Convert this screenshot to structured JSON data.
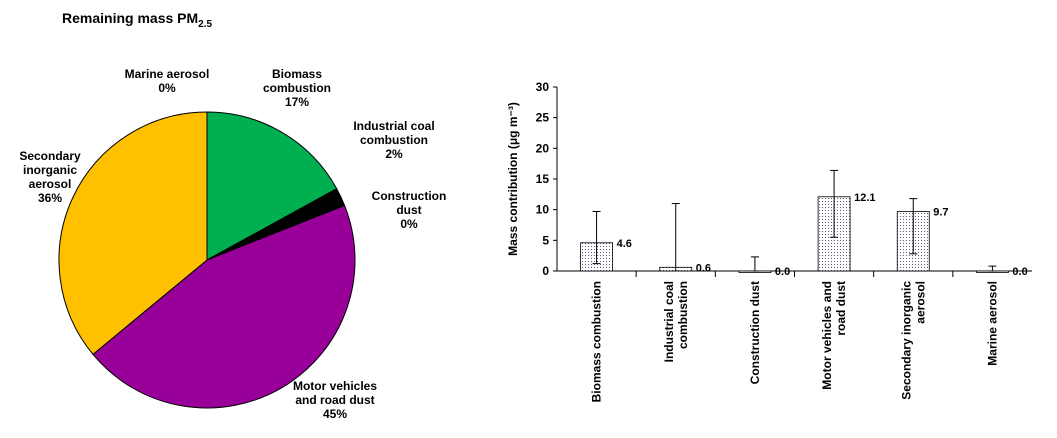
{
  "title": {
    "main": "Remaining mass PM",
    "subscript": "2.5"
  },
  "chart_data": [
    {
      "type": "pie",
      "slices": [
        {
          "label_lines": [
            "Biomass",
            "combustion",
            "17%"
          ],
          "value": 17,
          "color": "#00b050"
        },
        {
          "label_lines": [
            "Industrial coal",
            "combustion",
            "2%"
          ],
          "value": 2,
          "color": "#000000"
        },
        {
          "label_lines": [
            "Construction",
            "dust",
            "0%"
          ],
          "value": 0,
          "color": "#e0e0e0"
        },
        {
          "label_lines": [
            "Motor vehicles",
            "and road dust",
            "45%"
          ],
          "value": 45,
          "color": "#990099"
        },
        {
          "label_lines": [
            "Secondary",
            "inorganic",
            "aerosol",
            "36%"
          ],
          "value": 36,
          "color": "#ffc000"
        },
        {
          "label_lines": [
            "Marine aerosol",
            "0%"
          ],
          "value": 0,
          "color": "#c0c0c0"
        }
      ]
    },
    {
      "type": "bar",
      "ylabel": "Mass contribution (μg m⁻³)",
      "ylim": [
        0,
        30
      ],
      "yticks": [
        0,
        5,
        10,
        15,
        20,
        25,
        30
      ],
      "categories": [
        [
          "Biomass combustion"
        ],
        [
          "Industrial coal",
          "combustion"
        ],
        [
          "Construction dust"
        ],
        [
          "Motor vehicles and",
          "road dust"
        ],
        [
          "Secondary inorganic",
          "aerosol"
        ],
        [
          "Marine aerosol"
        ]
      ],
      "values": [
        4.6,
        0.6,
        0.0,
        12.1,
        9.7,
        0.0
      ],
      "value_labels": [
        "4.6",
        "0.6",
        "0.0",
        "12.1",
        "9.7",
        "0.0"
      ],
      "error_low": [
        1.2,
        0.0,
        0.0,
        5.5,
        2.8,
        0.0
      ],
      "error_high": [
        9.7,
        11.0,
        2.3,
        16.4,
        11.8,
        0.8
      ],
      "fill": "dotted"
    }
  ]
}
